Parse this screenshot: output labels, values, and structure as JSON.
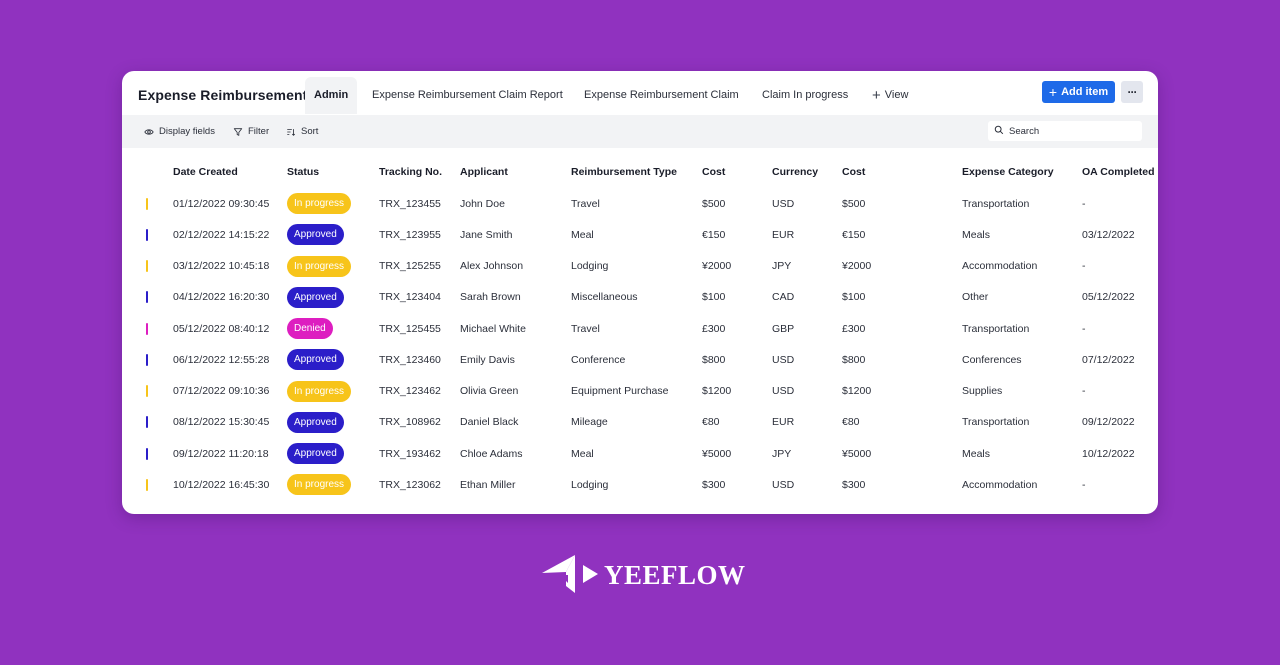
{
  "app": {
    "title": "Expense Reimbursement"
  },
  "tabs": [
    {
      "label": "Admin",
      "active": true
    },
    {
      "label": "Expense Reimbursement Claim Report",
      "active": false
    },
    {
      "label": "Expense Reimbursement Claim",
      "active": false
    },
    {
      "label": "Claim In progress",
      "active": false
    }
  ],
  "view_tab": {
    "label": "View",
    "icon": "plus-icon"
  },
  "actions": {
    "add_item_label": "Add item",
    "add_item_icon": "plus-icon",
    "more_icon": "more-horizontal-icon"
  },
  "toolbar": {
    "display_fields": "Display fields",
    "display_fields_icon": "eye-icon",
    "filter": "Filter",
    "filter_icon": "filter-icon",
    "sort": "Sort",
    "sort_icon": "sort-icon",
    "search_placeholder": "Search",
    "search_icon": "search-icon"
  },
  "table": {
    "columns": [
      "Date Created",
      "Status",
      "Tracking No.",
      "Applicant",
      "Reimbursement Type",
      "Cost",
      "Currency",
      "Cost",
      "Expense Category",
      "OA Completed Date"
    ],
    "rows": [
      {
        "date_created": "01/12/2022 09:30:45",
        "status": "In progress",
        "tracking_no": "TRX_123455",
        "applicant": "John Doe",
        "type": "Travel",
        "cost": "$500",
        "currency": "USD",
        "cost2": "$500",
        "category": "Transportation",
        "oa_completed": "-"
      },
      {
        "date_created": "02/12/2022 14:15:22",
        "status": "Approved",
        "tracking_no": "TRX_123955",
        "applicant": "Jane Smith",
        "type": "Meal",
        "cost": "€150",
        "currency": "EUR",
        "cost2": "€150",
        "category": "Meals",
        "oa_completed": "03/12/2022"
      },
      {
        "date_created": "03/12/2022 10:45:18",
        "status": "In progress",
        "tracking_no": "TRX_125255",
        "applicant": "Alex Johnson",
        "type": "Lodging",
        "cost": "¥2000",
        "currency": "JPY",
        "cost2": "¥2000",
        "category": "Accommodation",
        "oa_completed": "-"
      },
      {
        "date_created": "04/12/2022 16:20:30",
        "status": "Approved",
        "tracking_no": "TRX_123404",
        "applicant": "Sarah Brown",
        "type": "Miscellaneous",
        "cost": "$100",
        "currency": "CAD",
        "cost2": "$100",
        "category": "Other",
        "oa_completed": "05/12/2022"
      },
      {
        "date_created": "05/12/2022 08:40:12",
        "status": "Denied",
        "tracking_no": "TRX_125455",
        "applicant": "Michael White",
        "type": "Travel",
        "cost": "£300",
        "currency": "GBP",
        "cost2": "£300",
        "category": "Transportation",
        "oa_completed": "-"
      },
      {
        "date_created": "06/12/2022 12:55:28",
        "status": "Approved",
        "tracking_no": "TRX_123460",
        "applicant": "Emily Davis",
        "type": "Conference",
        "cost": "$800",
        "currency": "USD",
        "cost2": "$800",
        "category": "Conferences",
        "oa_completed": "07/12/2022"
      },
      {
        "date_created": "07/12/2022 09:10:36",
        "status": "In progress",
        "tracking_no": "TRX_123462",
        "applicant": "Olivia Green",
        "type": "Equipment Purchase",
        "cost": "$1200",
        "currency": "USD",
        "cost2": "$1200",
        "category": "Supplies",
        "oa_completed": "-"
      },
      {
        "date_created": "08/12/2022 15:30:45",
        "status": "Approved",
        "tracking_no": "TRX_108962",
        "applicant": "Daniel Black",
        "type": "Mileage",
        "cost": "€80",
        "currency": "EUR",
        "cost2": "€80",
        "category": "Transportation",
        "oa_completed": "09/12/2022"
      },
      {
        "date_created": "09/12/2022 11:20:18",
        "status": "Approved",
        "tracking_no": "TRX_193462",
        "applicant": "Chloe Adams",
        "type": "Meal",
        "cost": "¥5000",
        "currency": "JPY",
        "cost2": "¥5000",
        "category": "Meals",
        "oa_completed": "10/12/2022"
      },
      {
        "date_created": "10/12/2022 16:45:30",
        "status": "In progress",
        "tracking_no": "TRX_123062",
        "applicant": "Ethan Miller",
        "type": "Lodging",
        "cost": "$300",
        "currency": "USD",
        "cost2": "$300",
        "category": "Accommodation",
        "oa_completed": "-"
      }
    ]
  },
  "status_colors": {
    "In progress": "#f7c41a",
    "Approved": "#2b1ec9",
    "Denied": "#dd1ec0"
  },
  "colors": {
    "background": "#9032bf",
    "accent": "#1e6ae8"
  },
  "brand": {
    "logo_text": "YEEFLOW",
    "logo_icon": "yeeflow-logo-icon"
  }
}
